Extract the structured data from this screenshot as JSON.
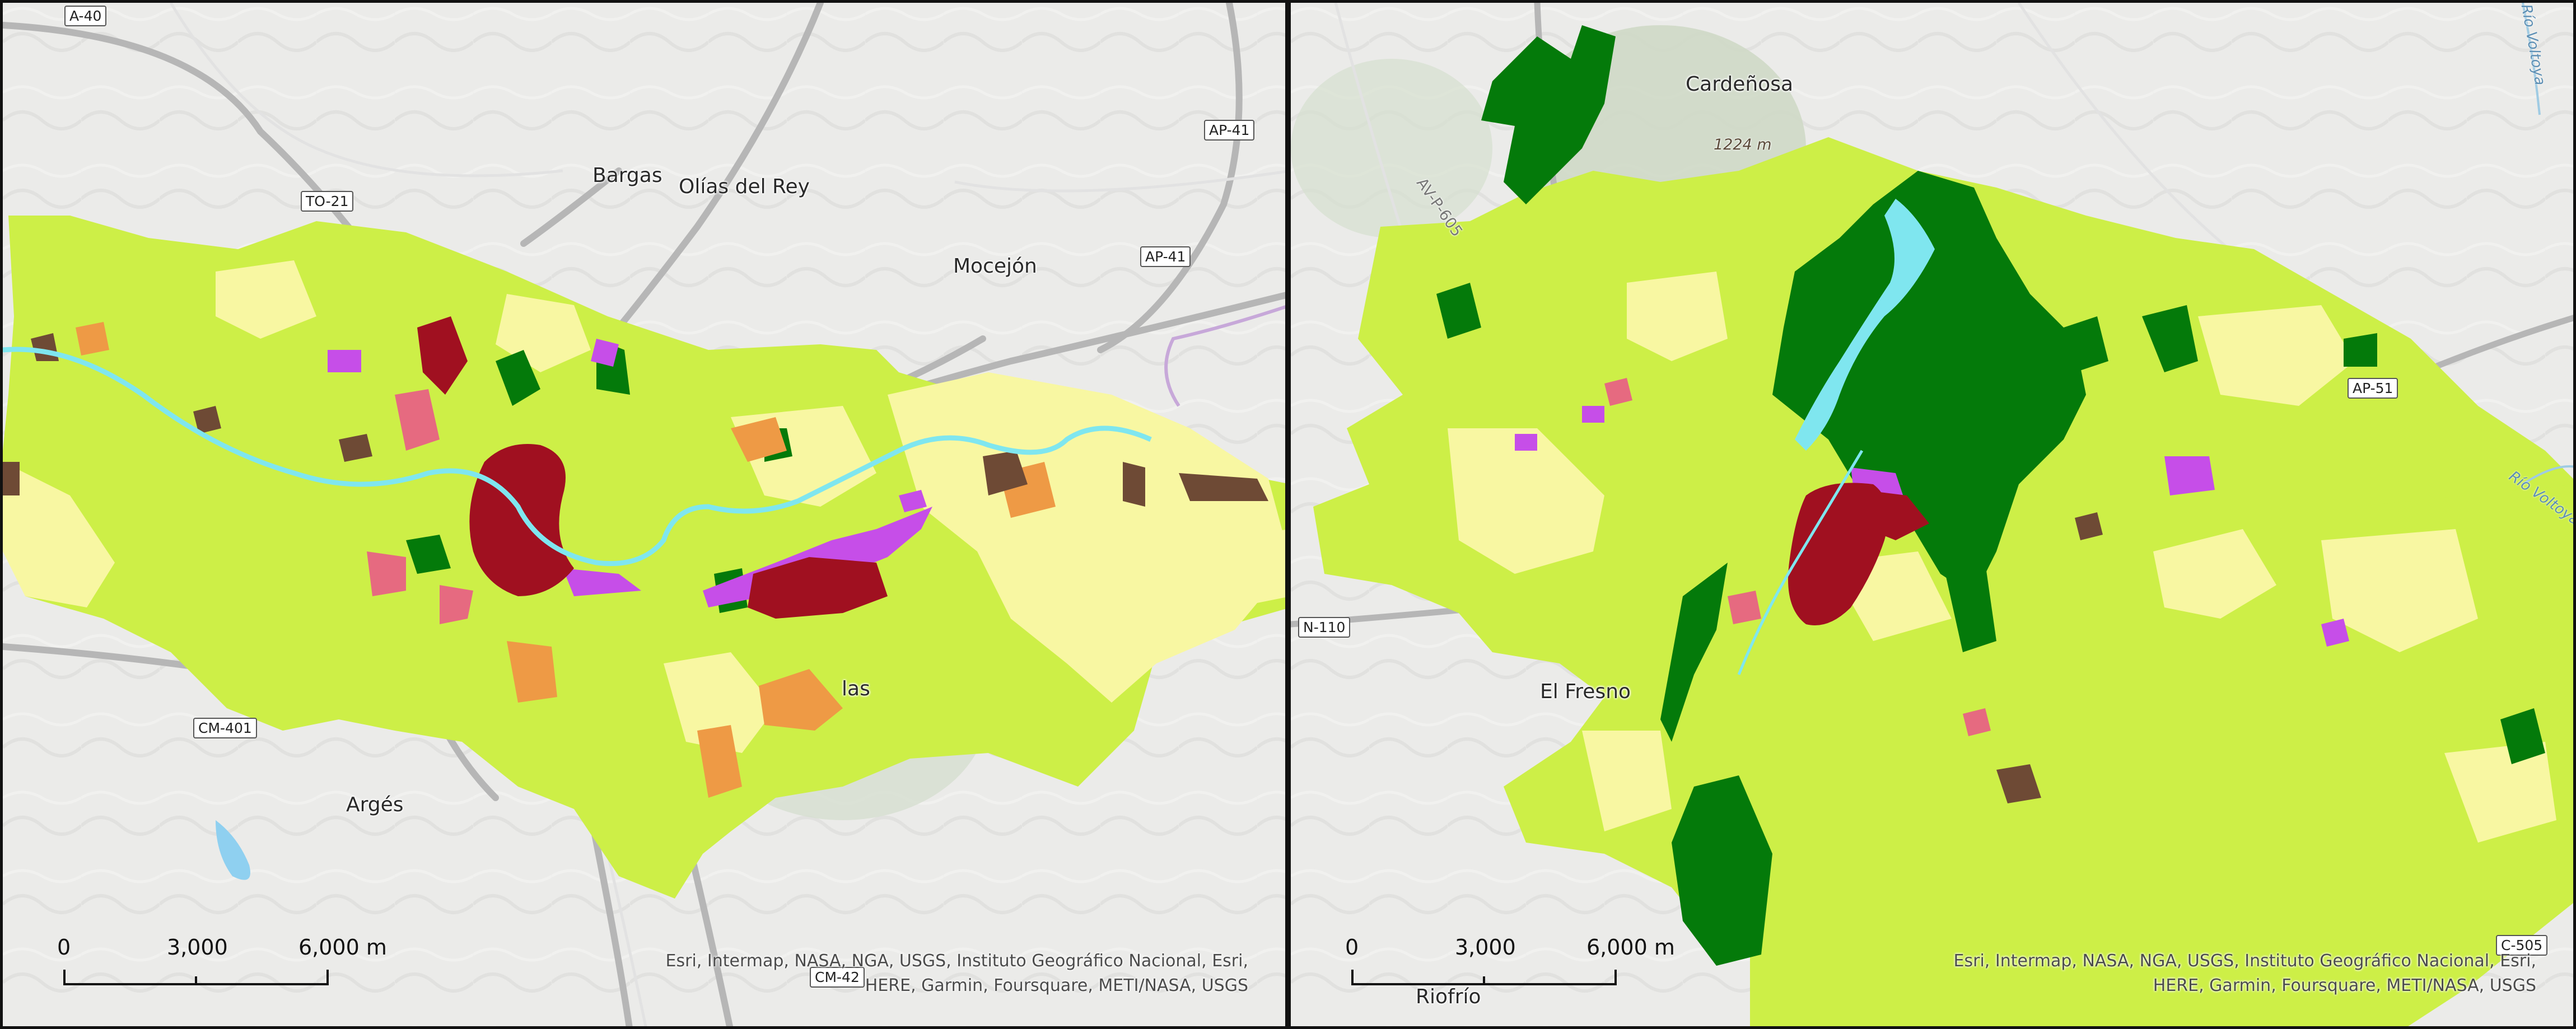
{
  "colors": {
    "background": "#ebebe9",
    "urban_green": "#cdef47",
    "light_yellow": "#f8f7a2",
    "forest": "#047a0a",
    "urban_core": "#a01020",
    "industrial": "#c64ee8",
    "orange": "#ee9a45",
    "brown": "#6e4a35",
    "river": "#7fe6ef",
    "road": "#b2b2b2"
  },
  "left_map": {
    "places": [
      "Bargas",
      "Olías del Rey",
      "Mocejón",
      "Argés",
      "las"
    ],
    "shields": [
      "A-40",
      "AP-41",
      "TO-21",
      "AP-41",
      "CM-401",
      "CM-42"
    ],
    "scale": {
      "zero": "0",
      "mid": "3,000",
      "end": "6,000 m"
    },
    "attribution": [
      "Esri, Intermap, NASA, NGA, USGS, Instituto Geográfico Nacional, Esri,",
      "HERE, Garmin, Foursquare, METI/NASA, USGS"
    ]
  },
  "right_map": {
    "places": [
      "Cardeñosa",
      "El Fresno",
      "Riofrío"
    ],
    "peak": "1224 m",
    "road_labels": [
      "AV-P-605"
    ],
    "water_labels": [
      "Río Voltoya",
      "Río Voltoya"
    ],
    "shields": [
      "AP-51",
      "N-110",
      "C-505"
    ],
    "scale": {
      "zero": "0",
      "mid": "3,000",
      "end": "6,000 m"
    },
    "attribution": [
      "Esri, Intermap, NASA, NGA, USGS, Instituto Geográfico Nacional, Esri,",
      "HERE, Garmin, Foursquare, METI/NASA, USGS"
    ]
  }
}
